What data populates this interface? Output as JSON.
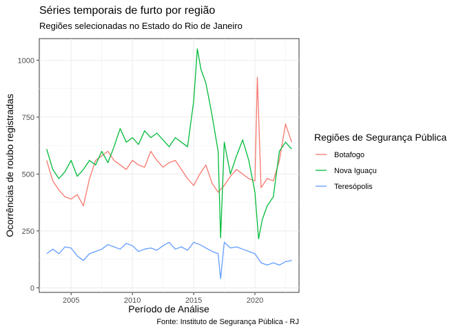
{
  "chart_data": {
    "type": "line",
    "title": "Séries temporais de furto por região",
    "subtitle": "Regiões selecionadas no Estado do Rio de Janeiro",
    "xlabel": "Período de Análise",
    "ylabel": "Ocorrências de roubo registradas",
    "caption": "Fonte: Instituto de Segurança Pública - RJ",
    "xlim": [
      2002.4,
      2023.6
    ],
    "ylim": [
      -20,
      1095
    ],
    "x_ticks": [
      2005,
      2010,
      2015,
      2020
    ],
    "y_ticks": [
      0,
      250,
      500,
      750,
      1000
    ],
    "x_tick_labels": [
      "2005",
      "2010",
      "2015",
      "2020"
    ],
    "y_tick_labels": [
      "0",
      "250",
      "500",
      "750",
      "1000"
    ],
    "grid": true,
    "legend": {
      "title": "Regiões de Segurança Pública",
      "position": "right"
    },
    "series": [
      {
        "name": "Botafogo",
        "color": "#F8766D",
        "x": [
          2003.0,
          2003.5,
          2004.0,
          2004.5,
          2005.0,
          2005.5,
          2006.0,
          2006.5,
          2007.0,
          2007.5,
          2008.0,
          2008.5,
          2009.0,
          2009.5,
          2010.0,
          2010.5,
          2011.0,
          2011.5,
          2012.0,
          2012.5,
          2013.0,
          2013.5,
          2014.0,
          2014.5,
          2015.0,
          2015.5,
          2016.0,
          2016.5,
          2017.0,
          2017.5,
          2018.0,
          2018.5,
          2019.0,
          2019.5,
          2020.0,
          2020.2,
          2020.5,
          2021.0,
          2021.5,
          2022.0,
          2022.5,
          2023.0
        ],
        "y": [
          560,
          470,
          430,
          400,
          390,
          410,
          360,
          480,
          560,
          580,
          600,
          560,
          540,
          520,
          560,
          540,
          530,
          600,
          560,
          530,
          550,
          560,
          520,
          480,
          450,
          500,
          540,
          460,
          420,
          450,
          490,
          520,
          500,
          480,
          470,
          925,
          440,
          480,
          470,
          560,
          720,
          640
        ]
      },
      {
        "name": "Nova Iguaçu",
        "color": "#00BA38",
        "x": [
          2003.0,
          2003.5,
          2004.0,
          2004.5,
          2005.0,
          2005.5,
          2006.0,
          2006.5,
          2007.0,
          2007.5,
          2008.0,
          2008.5,
          2009.0,
          2009.5,
          2010.0,
          2010.5,
          2011.0,
          2011.5,
          2012.0,
          2012.5,
          2013.0,
          2013.5,
          2014.0,
          2014.5,
          2015.0,
          2015.3,
          2015.6,
          2016.0,
          2016.5,
          2017.0,
          2017.2,
          2017.5,
          2018.0,
          2018.5,
          2019.0,
          2019.5,
          2020.0,
          2020.3,
          2020.6,
          2021.0,
          2021.5,
          2022.0,
          2022.5,
          2023.0
        ],
        "y": [
          610,
          520,
          480,
          510,
          560,
          490,
          520,
          560,
          540,
          600,
          550,
          620,
          700,
          640,
          660,
          630,
          690,
          660,
          680,
          650,
          620,
          660,
          640,
          620,
          820,
          1050,
          960,
          900,
          760,
          600,
          220,
          640,
          500,
          580,
          650,
          560,
          420,
          215,
          300,
          360,
          400,
          600,
          640,
          610
        ]
      },
      {
        "name": "Teresópolis",
        "color": "#619CFF",
        "x": [
          2003.0,
          2003.5,
          2004.0,
          2004.5,
          2005.0,
          2005.5,
          2006.0,
          2006.5,
          2007.0,
          2007.5,
          2008.0,
          2008.5,
          2009.0,
          2009.5,
          2010.0,
          2010.5,
          2011.0,
          2011.5,
          2012.0,
          2012.5,
          2013.0,
          2013.5,
          2014.0,
          2014.5,
          2015.0,
          2015.5,
          2016.0,
          2016.5,
          2017.0,
          2017.2,
          2017.5,
          2018.0,
          2018.5,
          2019.0,
          2019.5,
          2020.0,
          2020.5,
          2021.0,
          2021.5,
          2022.0,
          2022.5,
          2023.0
        ],
        "y": [
          150,
          170,
          150,
          180,
          175,
          140,
          120,
          150,
          160,
          170,
          190,
          180,
          170,
          195,
          185,
          160,
          170,
          175,
          165,
          185,
          200,
          170,
          180,
          165,
          200,
          190,
          175,
          160,
          150,
          40,
          200,
          175,
          180,
          170,
          160,
          150,
          110,
          100,
          110,
          100,
          115,
          120
        ]
      }
    ]
  }
}
